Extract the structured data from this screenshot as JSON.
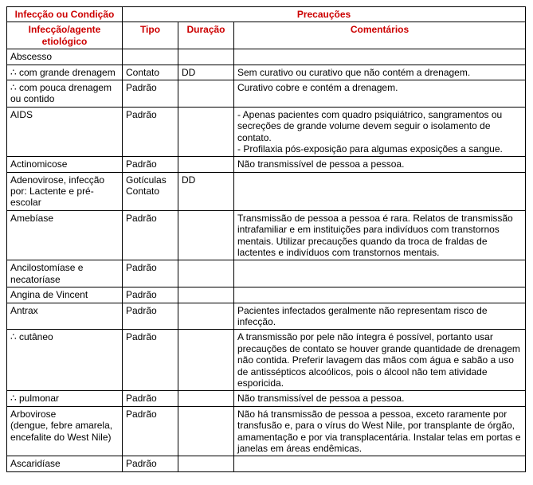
{
  "headers": {
    "infeccao_condicao": "Infecção ou Condição",
    "precaucoes": "Precauções",
    "infeccao_agente": "Infecção/agente etiológico",
    "tipo": "Tipo",
    "duracao": "Duração",
    "comentarios": "Comentários"
  },
  "rows": [
    {
      "infec": "Abscesso",
      "tipo": "",
      "dur": "",
      "com": ""
    },
    {
      "infec": "∴ com grande drenagem",
      "tipo": "Contato",
      "dur": "DD",
      "com": "Sem curativo ou curativo que não contém a drenagem."
    },
    {
      "infec": "∴ com pouca drenagem ou contido",
      "tipo": "Padrão",
      "dur": "",
      "com": "Curativo cobre e contém a drenagem."
    },
    {
      "infec": "AIDS",
      "tipo": "Padrão",
      "dur": "",
      "com": "- Apenas pacientes com quadro psiquiátrico, sangramentos ou secreções de grande volume devem seguir o isolamento de contato.\n- Profilaxia pós-exposição para algumas exposições a sangue."
    },
    {
      "infec": "Actinomicose",
      "tipo": "Padrão",
      "dur": "",
      "com": "Não transmissível de pessoa a pessoa."
    },
    {
      "infec": "Adenovirose, infecção por: Lactente e pré-escolar",
      "tipo": "Gotículas Contato",
      "dur": "DD",
      "com": ""
    },
    {
      "infec": "Amebíase",
      "tipo": "Padrão",
      "dur": "",
      "com": "Transmissão de pessoa a pessoa é rara. Relatos de transmissão intrafamiliar e em instituições para indivíduos com transtornos mentais. Utilizar precauções quando da troca de fraldas de lactentes e indivíduos com transtornos mentais."
    },
    {
      "infec": "Ancilostomíase e necatoríase",
      "tipo": "Padrão",
      "dur": "",
      "com": ""
    },
    {
      "infec": "Angina de Vincent",
      "tipo": "Padrão",
      "dur": "",
      "com": ""
    },
    {
      "infec": "Antrax",
      "tipo": "Padrão",
      "dur": "",
      "com": "Pacientes infectados geralmente não representam risco de infecção."
    },
    {
      "infec": "∴ cutâneo",
      "tipo": "Padrão",
      "dur": "",
      "com": "A transmissão por pele não íntegra é possível, portanto usar precauções de contato se houver grande quantidade de drenagem não contida. Preferir lavagem das mãos com água e sabão a uso de antissépticos alcoólicos, pois o álcool não tem atividade esporicida."
    },
    {
      "infec": "∴ pulmonar",
      "tipo": "Padrão",
      "dur": "",
      "com": "Não transmissível de pessoa a pessoa."
    },
    {
      "infec": "Arbovirose\n(dengue, febre amarela, encefalite do West Nile)",
      "tipo": "Padrão",
      "dur": "",
      "com": "Não há transmissão de pessoa a pessoa, exceto raramente por transfusão e, para o vírus do West Nile, por transplante de órgão, amamentação e por via transplacentária. Instalar telas em portas e janelas em áreas endêmicas."
    },
    {
      "infec": "Ascaridíase",
      "tipo": "Padrão",
      "dur": "",
      "com": ""
    }
  ]
}
